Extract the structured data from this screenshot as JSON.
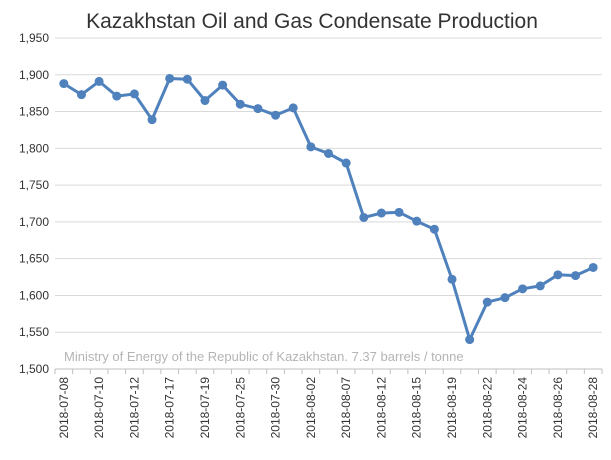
{
  "chart_data": {
    "type": "line",
    "title": "Kazakhstan Oil and Gas Condensate Production",
    "note": "Ministry of Energy of the Republic of Kazakhstan. 7.37 barrels / tonne",
    "xlabel": "",
    "ylabel": "",
    "ylim": [
      1500,
      1950
    ],
    "yticks": [
      1500,
      1550,
      1600,
      1650,
      1700,
      1750,
      1800,
      1850,
      1900,
      1950
    ],
    "ytick_labels": [
      "1,500",
      "1,550",
      "1,600",
      "1,650",
      "1,700",
      "1,750",
      "1,800",
      "1,850",
      "1,900",
      "1,950"
    ],
    "x_tick_labels": [
      "2018-07-08",
      "2018-07-10",
      "2018-07-12",
      "2018-07-17",
      "2018-07-19",
      "2018-07-25",
      "2018-07-30",
      "2018-08-02",
      "2018-08-07",
      "2018-08-12",
      "2018-08-15",
      "2018-08-19",
      "2018-08-22",
      "2018-08-24",
      "2018-08-26",
      "2018-08-28"
    ],
    "grid": true,
    "series": [
      {
        "color": "#4f81bd",
        "values": [
          1888,
          1873,
          1891,
          1871,
          1874,
          1839,
          1895,
          1894,
          1865,
          1886,
          1860,
          1854,
          1845,
          1855,
          1802,
          1793,
          1780,
          1706,
          1712,
          1713,
          1701,
          1690,
          1622,
          1540,
          1591,
          1597,
          1609,
          1613,
          1628,
          1627,
          1638
        ]
      }
    ]
  }
}
